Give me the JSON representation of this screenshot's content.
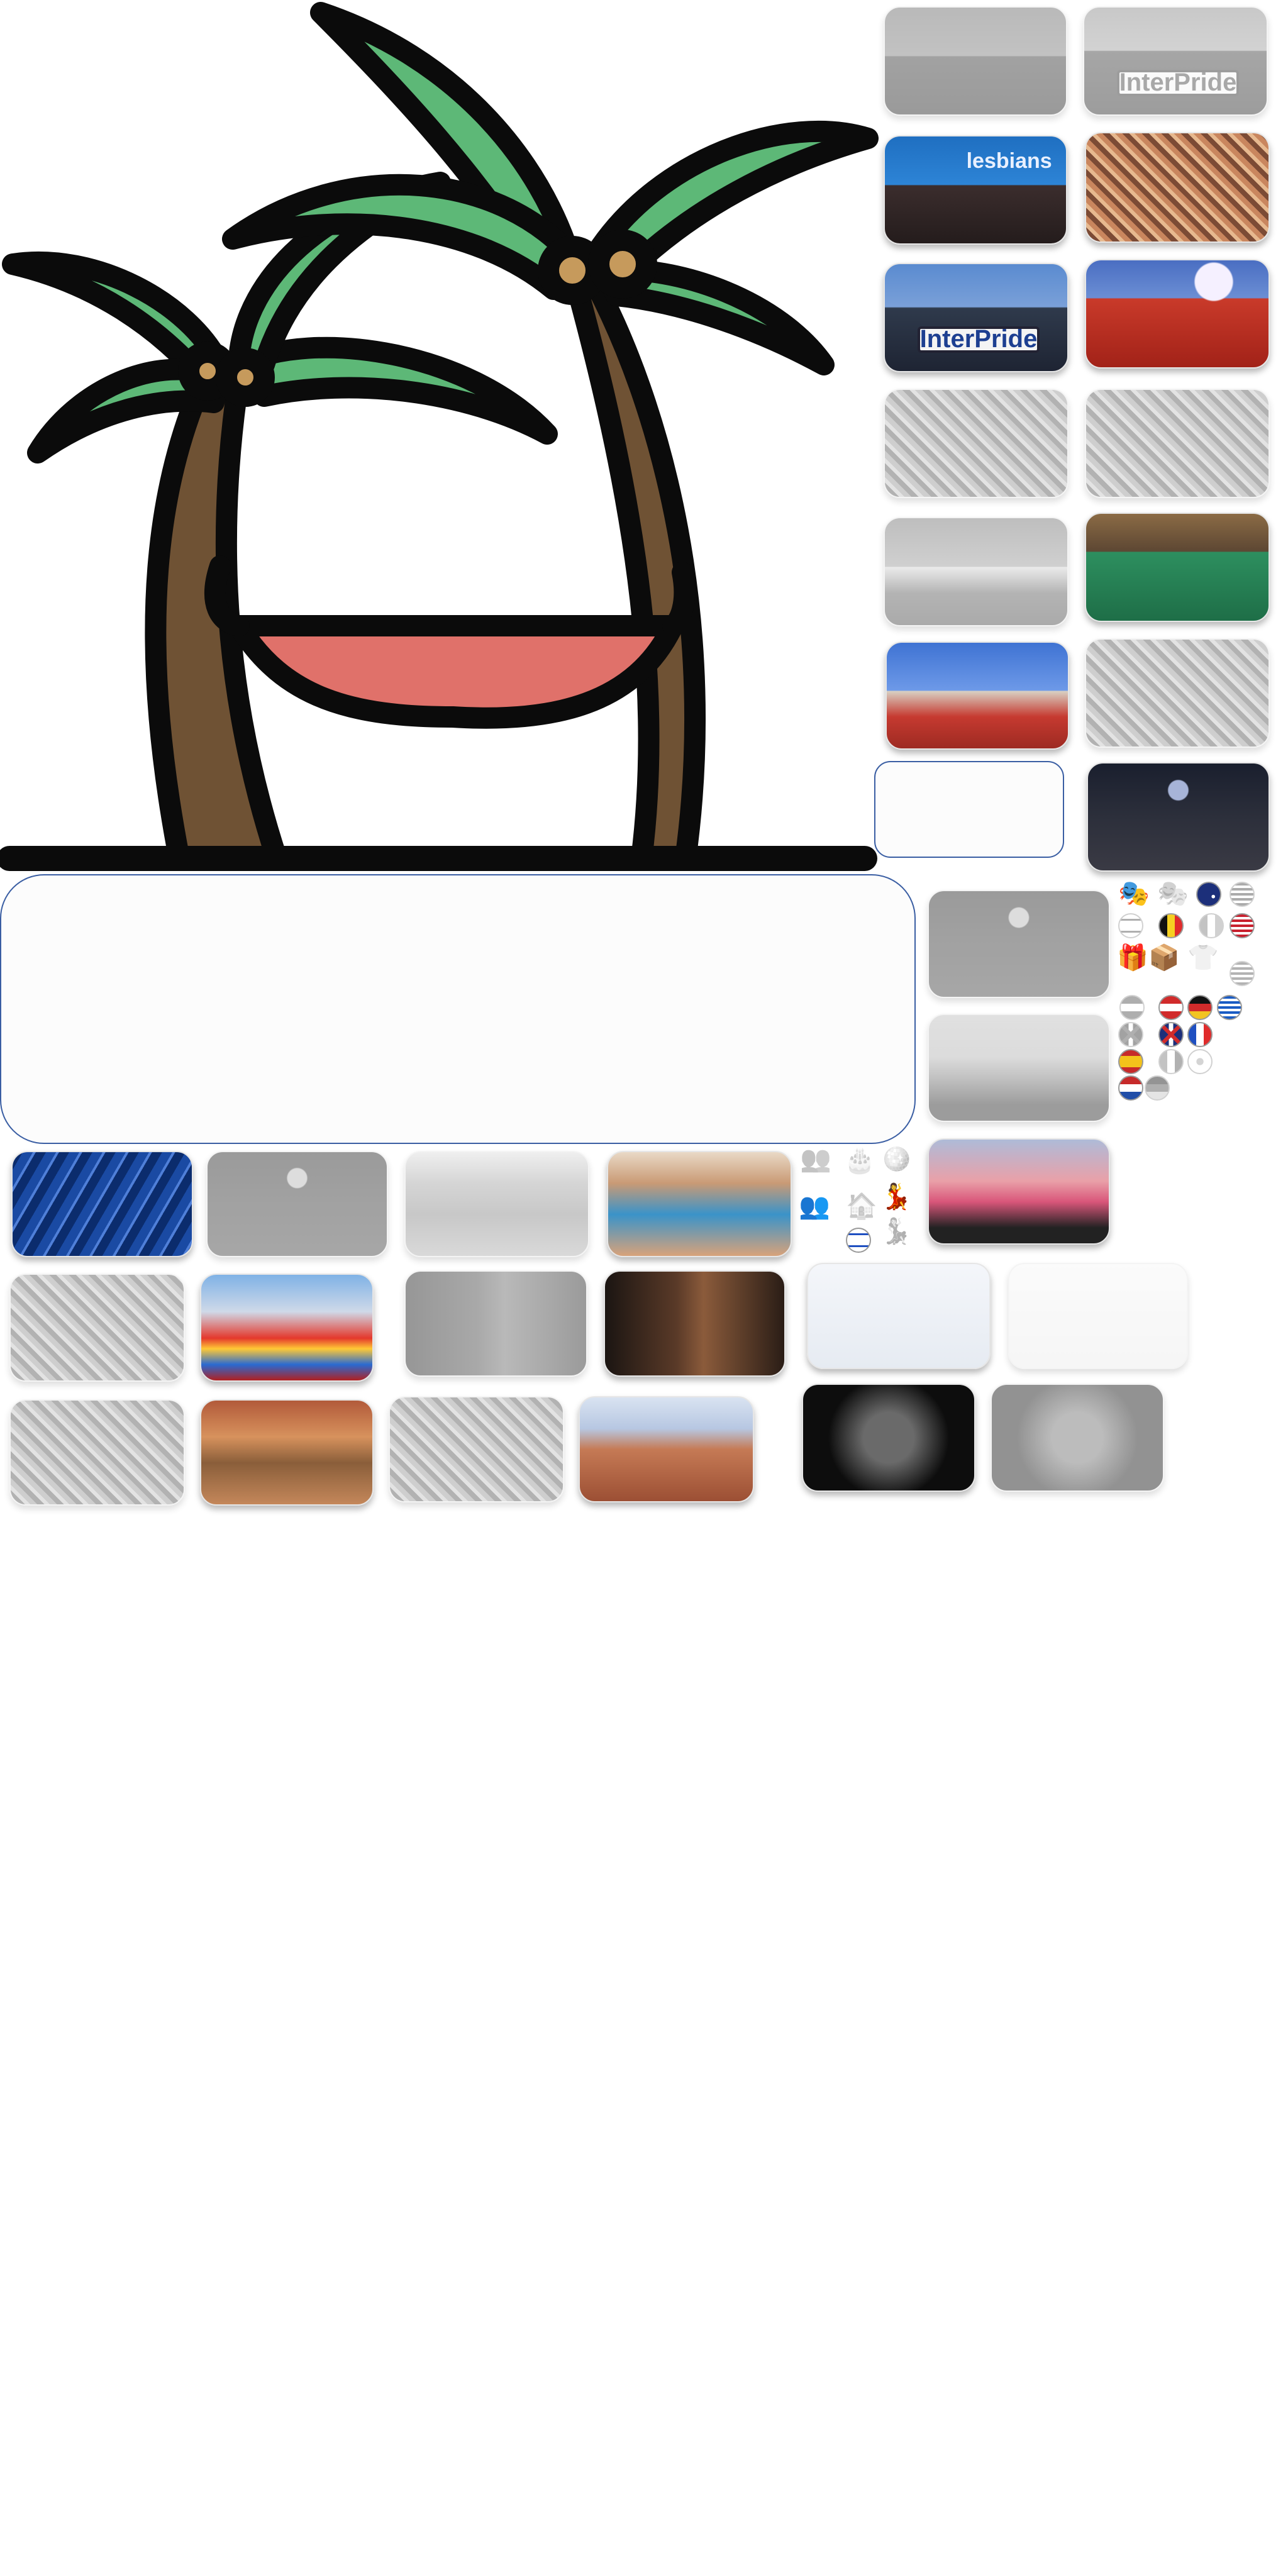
{
  "scene": {
    "title": "",
    "colors": {
      "leaf": "#5db877",
      "trunk": "#6f5234",
      "coconut": "#c69a5c",
      "hammock": "#e0716a",
      "outline": "#0b0b0b",
      "frame_border": "#3a5ea3"
    }
  },
  "tiles": [
    {
      "name": "photo-tile-delegation-gray",
      "style": "gray",
      "theme": "group",
      "text": ""
    },
    {
      "name": "photo-tile-interpride-banner-gray",
      "style": "gray",
      "theme": "banner",
      "text": "InterPride"
    },
    {
      "name": "photo-tile-delegation-stage",
      "style": "color",
      "theme": "stage",
      "text": "lesbians"
    },
    {
      "name": "photo-tile-rainbow-crowd",
      "style": "color",
      "theme": "crowd",
      "text": ""
    },
    {
      "name": "photo-tile-interpride-banner",
      "style": "color",
      "theme": "banner",
      "text": "InterPride"
    },
    {
      "name": "photo-tile-red-crowd-fireworks",
      "style": "color",
      "theme": "red",
      "text": ""
    },
    {
      "name": "photo-tile-crowd-gray-1",
      "style": "gray",
      "theme": "crowd",
      "text": ""
    },
    {
      "name": "photo-tile-crowd-gray-2",
      "style": "gray",
      "theme": "crowd",
      "text": ""
    },
    {
      "name": "photo-tile-castle-gray",
      "style": "gray",
      "theme": "castle",
      "text": ""
    },
    {
      "name": "photo-tile-green-venue",
      "style": "color",
      "theme": "green",
      "text": ""
    },
    {
      "name": "photo-tile-castle-red-crowd",
      "style": "color",
      "theme": "castle",
      "text": ""
    },
    {
      "name": "photo-tile-crowd-gray-3",
      "style": "gray",
      "theme": "crowd",
      "text": ""
    },
    {
      "name": "photo-tile-concert-hall",
      "style": "color",
      "theme": "dark",
      "text": ""
    },
    {
      "name": "photo-tile-concert-gray",
      "style": "gray",
      "theme": "dark",
      "text": ""
    },
    {
      "name": "photo-tile-dj-gray",
      "style": "gray",
      "theme": "dj",
      "text": ""
    },
    {
      "name": "photo-tile-blue-stage",
      "style": "color",
      "theme": "blue",
      "text": ""
    },
    {
      "name": "photo-tile-stage-gray",
      "style": "gray",
      "theme": "dark",
      "text": ""
    },
    {
      "name": "photo-tile-pool-party-gray",
      "style": "gray",
      "theme": "pool",
      "text": ""
    },
    {
      "name": "photo-tile-pool-party",
      "style": "color",
      "theme": "pool",
      "text": ""
    },
    {
      "name": "photo-tile-dj-crowd",
      "style": "color",
      "theme": "dj",
      "text": ""
    },
    {
      "name": "photo-tile-parade-gray",
      "style": "gray",
      "theme": "crowd",
      "text": ""
    },
    {
      "name": "photo-tile-pride-parade",
      "style": "color",
      "theme": "parade",
      "text": ""
    },
    {
      "name": "photo-tile-shirtless-gray",
      "style": "gray",
      "theme": "person",
      "text": ""
    },
    {
      "name": "photo-tile-shirtless",
      "style": "color",
      "theme": "person",
      "text": ""
    },
    {
      "name": "photo-tile-ski-rainbow",
      "style": "color",
      "theme": "ski",
      "text": ""
    },
    {
      "name": "photo-tile-ski-gray",
      "style": "gray",
      "theme": "ski",
      "text": ""
    },
    {
      "name": "photo-tile-outdoor-gray",
      "style": "gray",
      "theme": "crowd",
      "text": ""
    },
    {
      "name": "photo-tile-outdoor-party",
      "style": "color",
      "theme": "outdoor",
      "text": ""
    },
    {
      "name": "photo-tile-festival-gray",
      "style": "gray",
      "theme": "crowd",
      "text": ""
    },
    {
      "name": "photo-tile-festival-crowd",
      "style": "color",
      "theme": "festival",
      "text": ""
    },
    {
      "name": "photo-tile-theatre-duo",
      "style": "color",
      "theme": "theatre",
      "text": ""
    },
    {
      "name": "photo-tile-theatre-gray",
      "style": "gray",
      "theme": "theatre",
      "text": ""
    }
  ],
  "flags": [
    {
      "name": "australia-flag-icon",
      "style": "color",
      "code": "AU"
    },
    {
      "name": "usa-flag-icon-gray",
      "style": "gray",
      "code": "US"
    },
    {
      "name": "israel-flag-icon-gray",
      "style": "gray",
      "code": "IL"
    },
    {
      "name": "belgium-flag-icon",
      "style": "color",
      "code": "BE"
    },
    {
      "name": "ireland-flag-icon-gray",
      "style": "gray",
      "code": "IE"
    },
    {
      "name": "usa-flag-icon",
      "style": "color",
      "code": "US"
    },
    {
      "name": "greece-flag-icon-gray",
      "style": "gray",
      "code": "GR"
    },
    {
      "name": "netherlands-flag-icon-gray",
      "style": "gray",
      "code": "NL"
    },
    {
      "name": "austria-flag-icon",
      "style": "color",
      "code": "AT"
    },
    {
      "name": "germany-flag-icon",
      "style": "color",
      "code": "DE"
    },
    {
      "name": "greece-flag-icon",
      "style": "color",
      "code": "GR"
    },
    {
      "name": "uk-flag-icon-gray",
      "style": "gray",
      "code": "UK"
    },
    {
      "name": "uk-flag-icon",
      "style": "color",
      "code": "UK"
    },
    {
      "name": "france-flag-icon",
      "style": "color",
      "code": "FR"
    },
    {
      "name": "spain-flag-icon",
      "style": "color",
      "code": "ES"
    },
    {
      "name": "italy-flag-icon-gray",
      "style": "gray",
      "code": "IT"
    },
    {
      "name": "cyprus-flag-icon-gray",
      "style": "gray",
      "code": "CY"
    },
    {
      "name": "netherlands-flag-icon",
      "style": "color",
      "code": "NL"
    },
    {
      "name": "germany-flag-icon-gray",
      "style": "gray",
      "code": "DE"
    },
    {
      "name": "israel-flag-icon",
      "style": "color",
      "code": "IL"
    }
  ],
  "glyphs": [
    {
      "name": "theatre-masks-icon",
      "symbol": "🎭",
      "style": "color"
    },
    {
      "name": "theatre-masks-icon-gray",
      "symbol": "🎭",
      "style": "gray"
    },
    {
      "name": "gift-icon",
      "symbol": "🎁",
      "style": "color"
    },
    {
      "name": "parcel-icon",
      "symbol": "📦",
      "style": "color"
    },
    {
      "name": "shirt-icon-gray",
      "symbol": "👕",
      "style": "gray"
    },
    {
      "name": "couple-icon-gray",
      "symbol": "👥",
      "style": "gray"
    },
    {
      "name": "cake-icon-gray",
      "symbol": "🎂",
      "style": "gray"
    },
    {
      "name": "disco-ball-icon-gray",
      "symbol": "🪩",
      "style": "gray"
    },
    {
      "name": "couple-icon",
      "symbol": "👥",
      "style": "color"
    },
    {
      "name": "house-icon-gray",
      "symbol": "🏠",
      "style": "gray"
    },
    {
      "name": "dancers-icon",
      "symbol": "💃",
      "style": "color"
    },
    {
      "name": "dancers-icon-gray",
      "symbol": "💃",
      "style": "gray"
    }
  ]
}
